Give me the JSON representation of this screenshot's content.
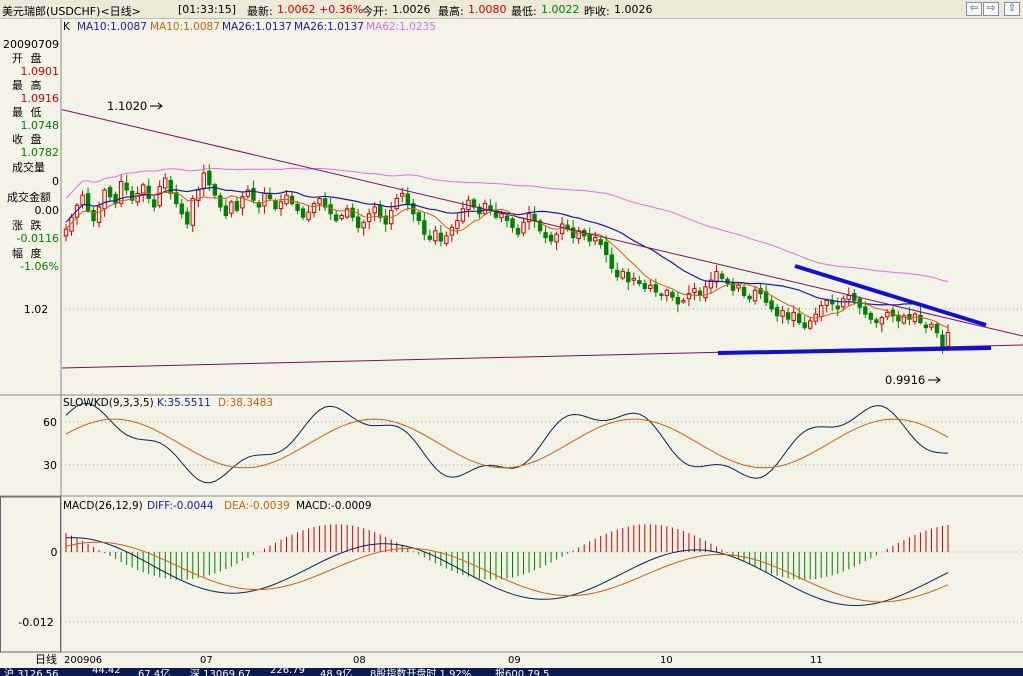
{
  "header": {
    "instrument": "美元瑞郎(USDCHF)<日线>",
    "time": "[01:33:15]",
    "last_label": "最新:",
    "last_value": "1.0062",
    "change": "+0.36%",
    "open_label": "今开:",
    "open_value": "1.0026",
    "high_label": "最高:",
    "high_value": "1.0080",
    "low_label": "最低:",
    "low_value": "1.0022",
    "prevclose_label": "昨收:",
    "prevclose_value": "1.0026",
    "nav_left_icon": "arrow-left-icon",
    "nav_right_icon": "arrow-right-icon",
    "nav_up_icon": "arrow-up-icon"
  },
  "info_panel": {
    "date": "20090709",
    "open_label": "开 盘",
    "open_value": "1.0901",
    "high_label": "最 高",
    "high_value": "1.0916",
    "low_label": "最 低",
    "low_value": "1.0748",
    "close_label": "收 盘",
    "close_value": "1.0782",
    "volume_label": "成交量",
    "volume_value": "0",
    "amount_label": "成交金额",
    "amount_value": "0.00",
    "change_label": "涨 跌",
    "change_value": "-0.0116",
    "pct_label": "幅 度",
    "pct_value": "-1.06%"
  },
  "price_panel": {
    "legend": {
      "k": "K",
      "ma10a": "MA10:1.0087",
      "ma10b": "MA10:1.0087",
      "ma26a": "MA26:1.0137",
      "ma26b": "MA26:1.0137",
      "ma62": "MA62:1.0235"
    },
    "y_tick": "1.02",
    "high_note": "1.1020",
    "low_note": "0.9916"
  },
  "kd_panel": {
    "legend": {
      "name": "SLOWKD(9,3,3,5)",
      "k": "K:35.5511",
      "d": "D:38.3483"
    },
    "ticks": [
      "60",
      "30"
    ]
  },
  "macd_panel": {
    "legend": {
      "name": "MACD(26,12,9)",
      "diff": "DIFF:-0.0044",
      "dea": "DEA:-0.0039",
      "macd": "MACD:-0.0009"
    },
    "ticks": [
      "0",
      "-0.012"
    ]
  },
  "x_axis": {
    "period_label": "日线",
    "labels": [
      "200906",
      "07",
      "08",
      "09",
      "10",
      "11"
    ]
  },
  "status_bar": [
    "沪 3126.56",
    "44.42",
    "67.4亿",
    "深 13069.67",
    "226.79",
    "48.9亿",
    "8股指数开盘时 1.92%",
    "报600.79.5"
  ],
  "colors": {
    "up": "#d00000",
    "down": "#008000",
    "ma10": "#d06010",
    "ma26": "#1a1aa0",
    "ma62": "#e070e0",
    "trend": "#7a1060",
    "support": "#1010d0"
  },
  "chart_data": {
    "type": "candlestick",
    "x_labels": [
      "200906",
      "07",
      "08",
      "09",
      "10",
      "11"
    ],
    "y_labeled_tick": 1.02,
    "annotated_high": 1.102,
    "annotated_low": 0.9916,
    "selected_bar": {
      "date": "20090709",
      "open": 1.0901,
      "high": 1.0916,
      "low": 1.0748,
      "close": 1.0782
    },
    "last_ma": {
      "MA10": 1.0087,
      "MA26": 1.0137,
      "MA62": 1.0235
    },
    "kd": {
      "K": 35.5511,
      "D": 38.3483,
      "ticks": [
        60,
        30
      ]
    },
    "macd": {
      "DIFF": -0.0044,
      "DEA": -0.0039,
      "MACD": -0.0009,
      "ticks": [
        0,
        -0.012
      ]
    },
    "candles_close": [
      1.067,
      1.074,
      1.081,
      1.087,
      1.078,
      1.072,
      1.08,
      1.09,
      1.086,
      1.082,
      1.095,
      1.09,
      1.084,
      1.088,
      1.093,
      1.085,
      1.08,
      1.092,
      1.097,
      1.088,
      1.082,
      1.076,
      1.07,
      1.085,
      1.09,
      1.1,
      1.093,
      1.087,
      1.08,
      1.075,
      1.083,
      1.078,
      1.086,
      1.09,
      1.084,
      1.08,
      1.088,
      1.085,
      1.079,
      1.083,
      1.087,
      1.082,
      1.078,
      1.074,
      1.077,
      1.082,
      1.085,
      1.08,
      1.076,
      1.072,
      1.075,
      1.079,
      1.074,
      1.068,
      1.071,
      1.076,
      1.08,
      1.074,
      1.07,
      1.078,
      1.085,
      1.088,
      1.082,
      1.076,
      1.072,
      1.064,
      1.061,
      1.066,
      1.06,
      1.063,
      1.068,
      1.072,
      1.079,
      1.084,
      1.08,
      1.076,
      1.082,
      1.078,
      1.074,
      1.076,
      1.072,
      1.068,
      1.064,
      1.071,
      1.076,
      1.072,
      1.066,
      1.062,
      1.06,
      1.064,
      1.07,
      1.067,
      1.062,
      1.066,
      1.063,
      1.06,
      1.062,
      1.058,
      1.052,
      1.044,
      1.039,
      1.042,
      1.036,
      1.038,
      1.035,
      1.032,
      1.034,
      1.03,
      1.028,
      1.031,
      1.027,
      1.023,
      1.025,
      1.029,
      1.032,
      1.028,
      1.033,
      1.037,
      1.042,
      1.038,
      1.035,
      1.031,
      1.034,
      1.028,
      1.026,
      1.031,
      1.029,
      1.024,
      1.02,
      1.016,
      1.019,
      1.014,
      1.018,
      1.012,
      1.009,
      1.013,
      1.017,
      1.022,
      1.025,
      1.023,
      1.02,
      1.026,
      1.028,
      1.025,
      1.021,
      1.017,
      1.014,
      1.012,
      1.015,
      1.018,
      1.016,
      1.013,
      1.016,
      1.014,
      1.017,
      1.012,
      1.009,
      1.011,
      1.006,
      0.9975,
      1.0062
    ]
  }
}
